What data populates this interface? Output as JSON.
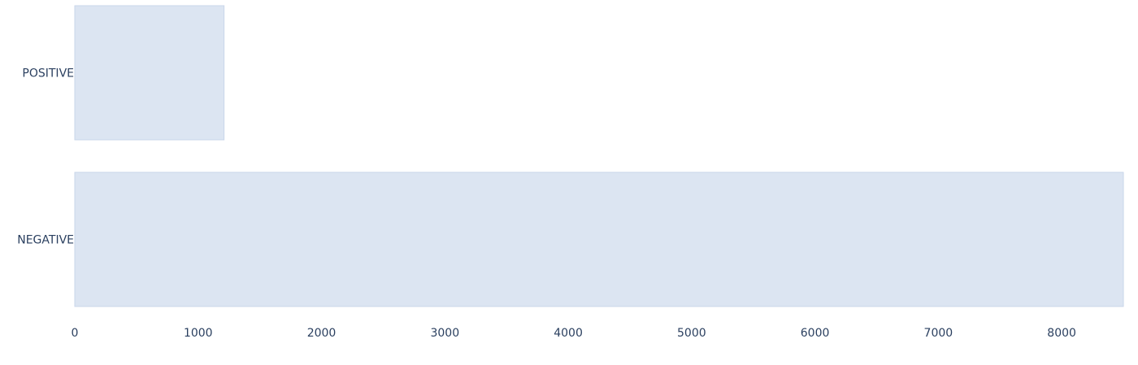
{
  "chart_data": {
    "type": "bar",
    "orientation": "horizontal",
    "categories": [
      "POSITIVE",
      "NEGATIVE"
    ],
    "values": [
      1210,
      8500
    ],
    "title": "",
    "xlabel": "",
    "ylabel": "",
    "xlim": [
      0,
      8500
    ],
    "xticks": [
      0,
      1000,
      2000,
      3000,
      4000,
      5000,
      6000,
      7000,
      8000
    ],
    "grid": false,
    "legend": "none",
    "bar_color": "#dce5f2"
  }
}
